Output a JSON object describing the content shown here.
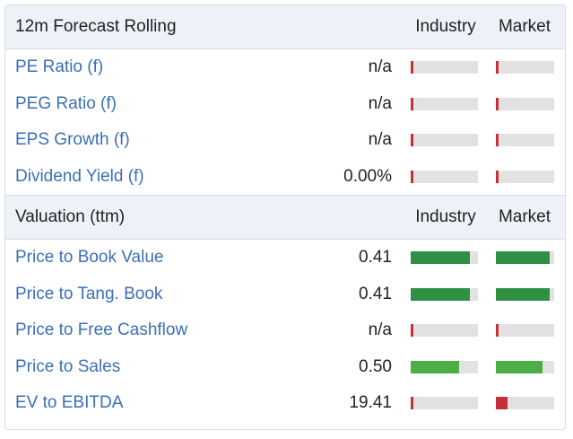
{
  "forecast": {
    "title": "12m Forecast Rolling",
    "col_industry": "Industry",
    "col_market": "Market",
    "rows": [
      {
        "label": "PE Ratio (f)",
        "value": "n/a",
        "industry_level": 0.0,
        "market_level": 0.0
      },
      {
        "label": "PEG Ratio (f)",
        "value": "n/a",
        "industry_level": 0.0,
        "market_level": 0.0
      },
      {
        "label": "EPS Growth (f)",
        "value": "n/a",
        "industry_level": 0.0,
        "market_level": 0.0
      },
      {
        "label": "Dividend Yield (f)",
        "value": "0.00%",
        "industry_level": 0.0,
        "market_level": 0.0
      }
    ]
  },
  "valuation": {
    "title": "Valuation (ttm)",
    "col_industry": "Industry",
    "col_market": "Market",
    "rows": [
      {
        "label": "Price to Book Value",
        "value": "0.41",
        "industry_level": 0.88,
        "market_level": 0.92
      },
      {
        "label": "Price to Tang. Book",
        "value": "0.41",
        "industry_level": 0.88,
        "market_level": 0.92
      },
      {
        "label": "Price to Free Cashflow",
        "value": "n/a",
        "industry_level": 0.0,
        "market_level": 0.0
      },
      {
        "label": "Price to Sales",
        "value": "0.50",
        "industry_level": 0.72,
        "market_level": 0.8
      },
      {
        "label": "EV to EBITDA",
        "value": "19.41",
        "industry_level": 0.0,
        "market_level": 0.2
      }
    ]
  },
  "colors": {
    "low": "#c62f3a",
    "good_strong": "#2f8f45",
    "good": "#4caf45",
    "track": "#e2e2e2",
    "link": "#3b6fb6"
  }
}
